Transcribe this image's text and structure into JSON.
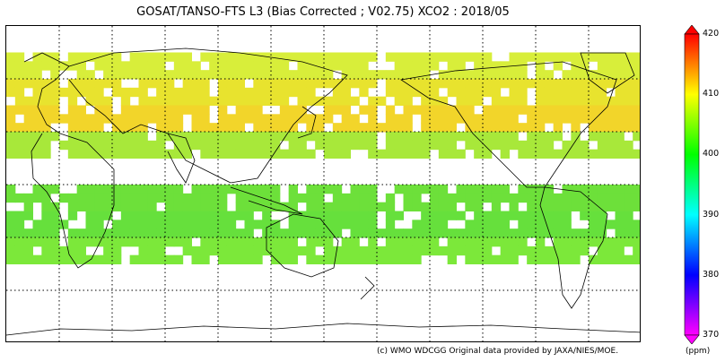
{
  "title": "GOSAT/TANSO-FTS L3 (Bias Corrected ; V02.75) XCO2 : 2018/05",
  "credit": "(c) WMO WDCGG   Original data provided by JAXA/NIES/MOE.",
  "colorbar": {
    "unit": "(ppm)",
    "min": 370,
    "max": 420,
    "ticks": [
      "420",
      "410",
      "400",
      "390",
      "380",
      "370"
    ],
    "stops": [
      "#ff00ff",
      "#0000ff",
      "#00ffff",
      "#00ff00",
      "#ffff00",
      "#ff0000"
    ]
  },
  "map": {
    "projection": "equirectangular, centered 150E",
    "gridlines": "dotted every 30 degrees",
    "bands": [
      {
        "lat_from": 75,
        "lat_to": 60,
        "value": 408,
        "color": "#d8ee3a"
      },
      {
        "lat_from": 60,
        "lat_to": 45,
        "value": 409,
        "color": "#e8e32e"
      },
      {
        "lat_from": 45,
        "lat_to": 30,
        "value": 410,
        "color": "#f2d52a"
      },
      {
        "lat_from": 30,
        "lat_to": 15,
        "value": 404,
        "color": "#a8e83a"
      },
      {
        "lat_from": 0,
        "lat_to": -15,
        "value": 402,
        "color": "#6de03a"
      },
      {
        "lat_from": -15,
        "lat_to": -30,
        "value": 401,
        "color": "#66e03c"
      },
      {
        "lat_from": -30,
        "lat_to": -45,
        "value": 401,
        "color": "#7ce83a"
      }
    ]
  }
}
